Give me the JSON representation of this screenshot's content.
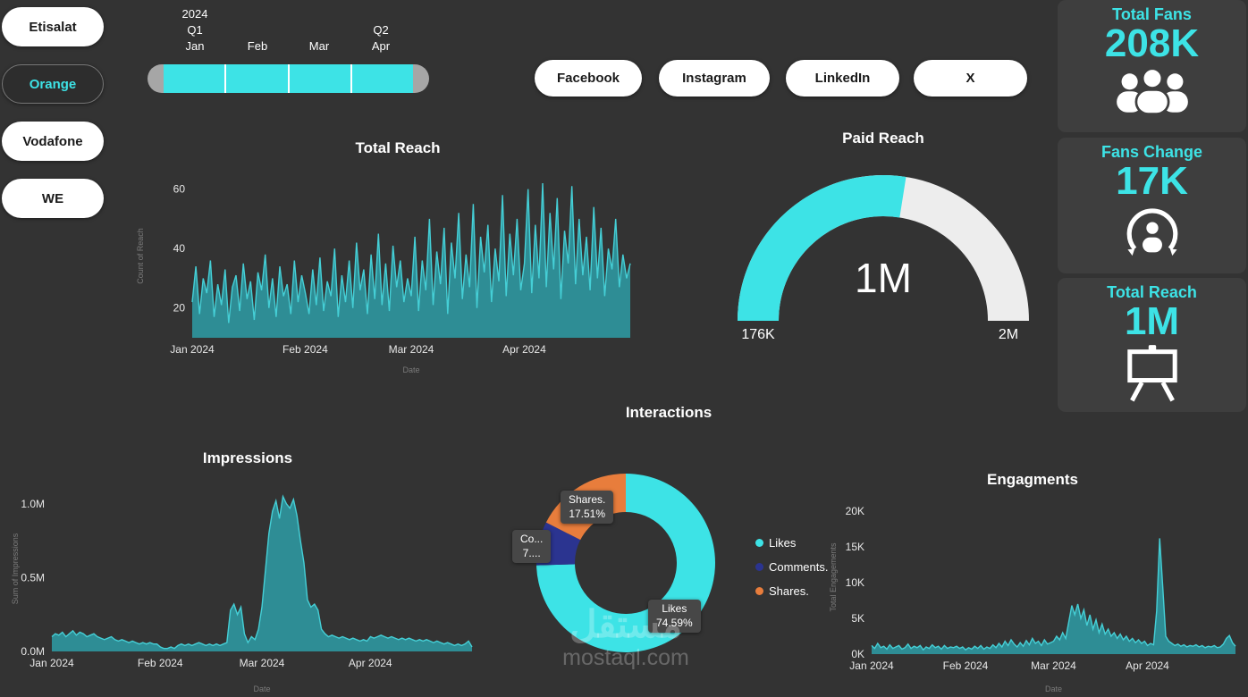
{
  "colors": {
    "background": "#333333",
    "card": "#3e3e3e",
    "accent": "#3DE3E6",
    "area_fill": "#2E8D95",
    "area_line": "#45CFD6",
    "gauge_track": "#EDEDED",
    "slider_handle": "#A6A6A6"
  },
  "sidebar": {
    "items": [
      {
        "label": "Etisalat",
        "selected": false
      },
      {
        "label": "Orange",
        "selected": true
      },
      {
        "label": "Vodafone",
        "selected": false
      },
      {
        "label": "WE",
        "selected": false
      }
    ]
  },
  "date_slicer": {
    "year": "2024",
    "quarters": [
      {
        "label": "Q1"
      },
      {
        "label": "Q2"
      }
    ],
    "months": [
      "Jan",
      "Feb",
      "Mar",
      "Apr"
    ]
  },
  "platforms": [
    {
      "label": "Facebook"
    },
    {
      "label": "Instagram"
    },
    {
      "label": "LinkedIn"
    },
    {
      "label": "X"
    }
  ],
  "kpis": [
    {
      "title": "Total Fans",
      "value": "208K",
      "icon": "fans-group-icon"
    },
    {
      "title": "Fans Change",
      "value": "17K",
      "icon": "fan-refresh-icon"
    },
    {
      "title": "Total Reach",
      "value": "1M",
      "icon": "presentation-board-icon"
    }
  ],
  "watermark": {
    "arabic": "مستقل",
    "latin": "mostaql.com"
  },
  "chart_data": [
    {
      "type": "area",
      "title": "Total Reach",
      "xlabel": "Date",
      "ylabel": "Count of Reach",
      "ylim": [
        10,
        65
      ],
      "yticks": [
        {
          "v": 20,
          "label": "20"
        },
        {
          "v": 40,
          "label": "40"
        },
        {
          "v": 60,
          "label": "60"
        }
      ],
      "xticks": [
        {
          "pos": 0,
          "label": "Jan 2024"
        },
        {
          "pos": 0.258,
          "label": "Feb 2024"
        },
        {
          "pos": 0.5,
          "label": "Mar 2024"
        },
        {
          "pos": 0.758,
          "label": "Apr 2024"
        }
      ],
      "values": [
        22,
        34,
        18,
        30,
        25,
        36,
        17,
        28,
        21,
        33,
        15,
        27,
        31,
        19,
        35,
        23,
        29,
        16,
        32,
        26,
        38,
        20,
        30,
        17,
        34,
        24,
        28,
        18,
        36,
        22,
        31,
        25,
        18,
        33,
        21,
        37,
        19,
        29,
        24,
        40,
        17,
        31,
        22,
        36,
        20,
        42,
        26,
        33,
        18,
        38,
        23,
        45,
        21,
        35,
        19,
        41,
        27,
        36,
        22,
        30,
        24,
        44,
        19,
        36,
        26,
        50,
        21,
        39,
        28,
        47,
        18,
        42,
        30,
        52,
        23,
        38,
        27,
        55,
        20,
        44,
        32,
        48,
        22,
        40,
        29,
        58,
        24,
        45,
        31,
        50,
        26,
        35,
        60,
        25,
        48,
        30,
        62,
        27,
        52,
        33,
        57,
        23,
        46,
        35,
        61,
        28,
        50,
        31,
        44,
        26,
        54,
        30,
        47,
        24,
        40,
        33,
        50,
        27,
        38,
        30,
        35
      ]
    },
    {
      "type": "gauge",
      "title": "Paid Reach",
      "min_label": "176K",
      "max_label": "2M",
      "value_label": "1M",
      "min": 176000,
      "max": 2000000,
      "value": 1000000,
      "fraction": 0.55
    },
    {
      "type": "area",
      "title": "Impressions",
      "xlabel": "Date",
      "ylabel": "Sum of Impressions",
      "ylim": [
        0,
        1.12
      ],
      "yticks": [
        {
          "v": 0,
          "label": "0.0M"
        },
        {
          "v": 0.5,
          "label": "0.5M"
        },
        {
          "v": 1.0,
          "label": "1.0M"
        }
      ],
      "xticks": [
        {
          "pos": 0,
          "label": "Jan 2024"
        },
        {
          "pos": 0.258,
          "label": "Feb 2024"
        },
        {
          "pos": 0.5,
          "label": "Mar 2024"
        },
        {
          "pos": 0.758,
          "label": "Apr 2024"
        }
      ],
      "values": [
        0.1,
        0.12,
        0.11,
        0.13,
        0.1,
        0.12,
        0.14,
        0.11,
        0.13,
        0.12,
        0.1,
        0.11,
        0.12,
        0.1,
        0.09,
        0.08,
        0.09,
        0.1,
        0.08,
        0.07,
        0.08,
        0.07,
        0.06,
        0.07,
        0.06,
        0.05,
        0.06,
        0.05,
        0.06,
        0.05,
        0.05,
        0.03,
        0.02,
        0.02,
        0.03,
        0.02,
        0.04,
        0.05,
        0.04,
        0.05,
        0.04,
        0.05,
        0.06,
        0.05,
        0.04,
        0.05,
        0.04,
        0.05,
        0.04,
        0.05,
        0.06,
        0.28,
        0.32,
        0.25,
        0.3,
        0.12,
        0.06,
        0.1,
        0.08,
        0.15,
        0.3,
        0.55,
        0.8,
        0.95,
        1.02,
        0.9,
        1.05,
        1.0,
        0.97,
        1.03,
        0.92,
        0.75,
        0.6,
        0.35,
        0.3,
        0.32,
        0.28,
        0.15,
        0.12,
        0.1,
        0.11,
        0.1,
        0.09,
        0.1,
        0.09,
        0.08,
        0.09,
        0.08,
        0.07,
        0.08,
        0.07,
        0.1,
        0.09,
        0.1,
        0.11,
        0.1,
        0.09,
        0.1,
        0.09,
        0.08,
        0.09,
        0.08,
        0.09,
        0.08,
        0.07,
        0.08,
        0.07,
        0.08,
        0.07,
        0.06,
        0.07,
        0.06,
        0.05,
        0.06,
        0.05,
        0.04,
        0.05,
        0.04,
        0.05,
        0.07,
        0.03
      ]
    },
    {
      "type": "donut",
      "title": "Interactions",
      "slices": [
        {
          "name": "Likes",
          "pct": 74.59,
          "color": "#3DE3E6"
        },
        {
          "name": "Comments.",
          "pct": 7.9,
          "color": "#2B3490"
        },
        {
          "name": "Shares.",
          "pct": 17.51,
          "color": "#E87D3C"
        }
      ],
      "callouts": {
        "shares": {
          "line1": "Shares.",
          "line2": "17.51%"
        },
        "comments": {
          "line1": "Co...",
          "line2": "7...."
        },
        "likes": {
          "line1": "Likes",
          "line2": "74.59%"
        }
      }
    },
    {
      "type": "area",
      "title": "Engagments",
      "xlabel": "Date",
      "ylabel": "Total Engagements",
      "ylim": [
        0,
        21.5
      ],
      "yticks": [
        {
          "v": 0,
          "label": "0K"
        },
        {
          "v": 5,
          "label": "5K"
        },
        {
          "v": 10,
          "label": "10K"
        },
        {
          "v": 15,
          "label": "15K"
        },
        {
          "v": 20,
          "label": "20K"
        }
      ],
      "xticks": [
        {
          "pos": 0,
          "label": "Jan 2024"
        },
        {
          "pos": 0.258,
          "label": "Feb 2024"
        },
        {
          "pos": 0.5,
          "label": "Mar 2024"
        },
        {
          "pos": 0.758,
          "label": "Apr 2024"
        }
      ],
      "values": [
        1.2,
        0.8,
        1.5,
        0.9,
        1.1,
        0.7,
        1.3,
        0.8,
        1.0,
        1.2,
        0.7,
        0.9,
        1.4,
        0.8,
        1.1,
        0.9,
        1.2,
        0.6,
        1.0,
        0.8,
        1.3,
        0.9,
        1.1,
        0.7,
        1.2,
        0.8,
        1.0,
        0.9,
        1.1,
        0.8,
        1.0,
        0.6,
        0.9,
        0.7,
        1.1,
        0.8,
        1.2,
        0.7,
        1.0,
        0.8,
        1.3,
        0.9,
        1.5,
        1.0,
        1.8,
        1.2,
        2.0,
        1.4,
        1.0,
        1.6,
        1.1,
        1.9,
        1.3,
        2.2,
        1.5,
        1.8,
        1.2,
        2.0,
        1.4,
        1.6,
        1.8,
        2.5,
        2.0,
        3.0,
        2.2,
        4.5,
        6.8,
        5.5,
        7.0,
        5.0,
        6.2,
        4.0,
        5.5,
        3.5,
        4.8,
        3.0,
        4.2,
        2.8,
        3.5,
        2.5,
        3.0,
        2.2,
        2.8,
        2.0,
        2.5,
        1.8,
        2.2,
        1.6,
        2.0,
        1.5,
        1.8,
        1.2,
        1.5,
        1.3,
        6.0,
        16.2,
        9.5,
        2.5,
        1.8,
        1.5,
        1.2,
        1.4,
        1.1,
        1.3,
        1.0,
        1.2,
        1.1,
        1.3,
        1.0,
        1.2,
        0.9,
        1.1,
        1.0,
        1.2,
        0.9,
        1.0,
        1.4,
        2.2,
        2.6,
        1.6,
        1.1
      ]
    }
  ]
}
